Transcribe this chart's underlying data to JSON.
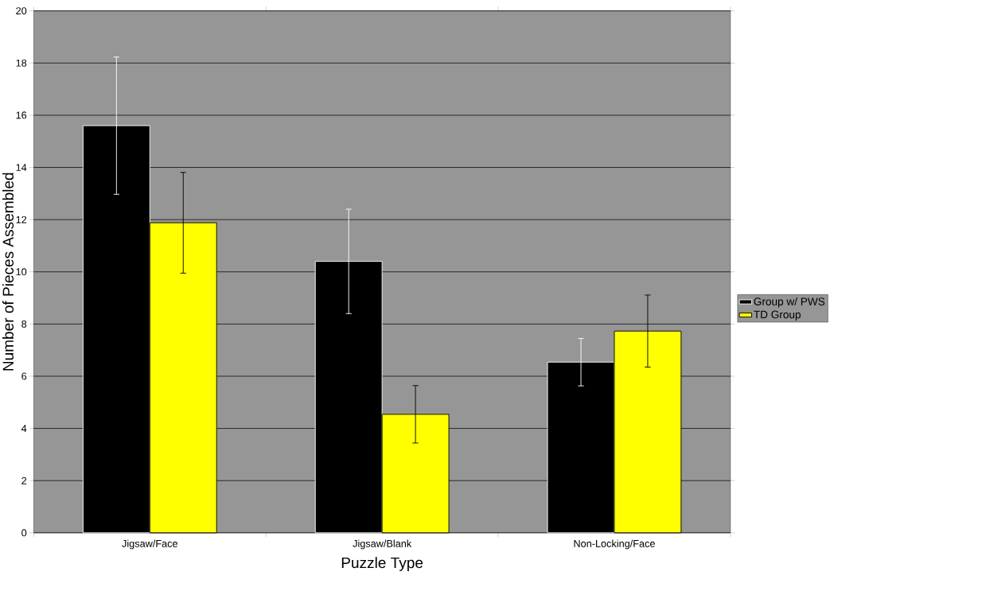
{
  "chart_data": {
    "type": "bar",
    "xlabel": "Puzzle Type",
    "ylabel": "Number of Pieces Assembled",
    "categories": [
      "Jigsaw/Face",
      "Jigsaw/Blank",
      "Non-Locking/Face"
    ],
    "series": [
      {
        "name": "Group w/ PWS",
        "color": "#000000",
        "values": [
          15.6,
          10.4,
          6.54
        ],
        "errors": [
          2.63,
          2.0,
          0.91
        ]
      },
      {
        "name": "TD Group",
        "color": "#ffff00",
        "values": [
          11.88,
          4.54,
          7.73
        ],
        "errors": [
          1.93,
          1.1,
          1.38
        ]
      }
    ],
    "ylim": [
      0,
      20
    ],
    "yticks": [
      0,
      2,
      4,
      6,
      8,
      10,
      12,
      14,
      16,
      18,
      20
    ],
    "grid": "y",
    "legend": "right"
  }
}
